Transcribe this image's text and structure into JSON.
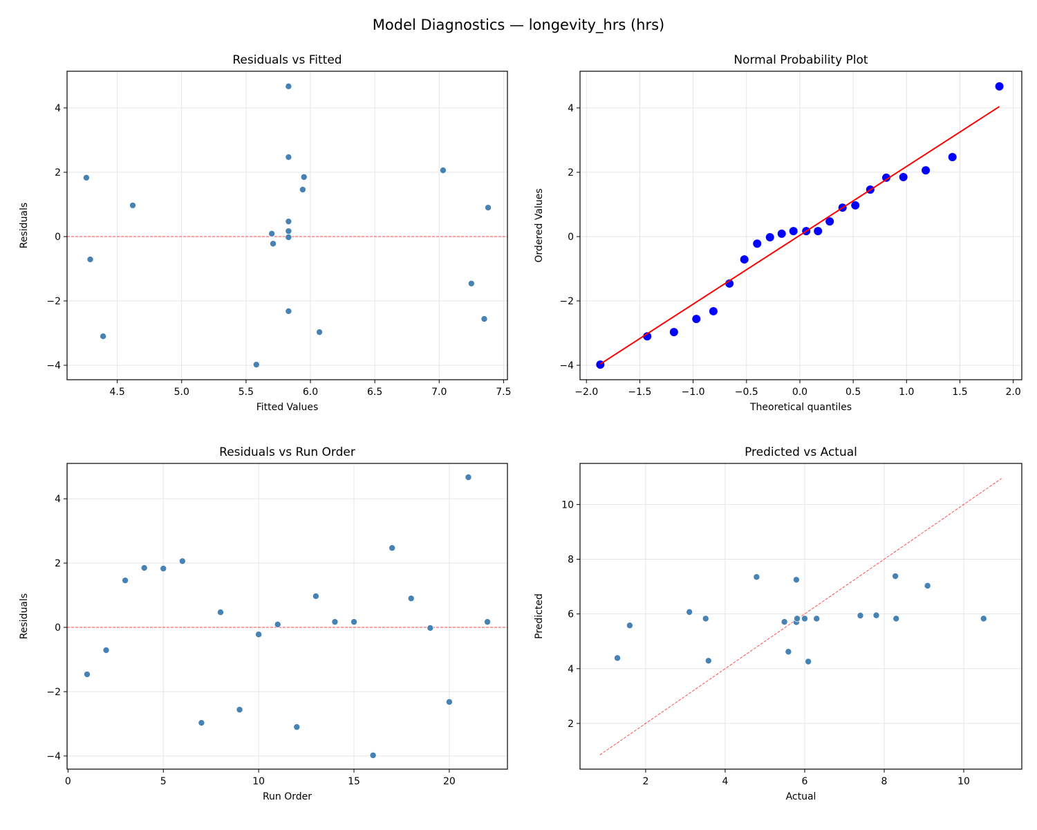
{
  "title": "Model Diagnostics — longevity_hrs (hrs)",
  "chart_data": [
    {
      "id": "resid_fitted",
      "type": "scatter",
      "title": "Residuals vs Fitted",
      "xlabel": "Fitted Values",
      "ylabel": "Residuals",
      "xlim": [
        4.11,
        7.53
      ],
      "ylim": [
        -4.45,
        5.14
      ],
      "xticks": [
        4.5,
        5.0,
        5.5,
        6.0,
        6.5,
        7.0,
        7.5
      ],
      "xtick_labels": [
        "4.5",
        "5.0",
        "5.5",
        "6.0",
        "6.5",
        "7.0",
        "7.5"
      ],
      "yticks": [
        -4,
        -2,
        0,
        2,
        4
      ],
      "ytick_labels": [
        "−4",
        "−2",
        "0",
        "2",
        "4"
      ],
      "grid": true,
      "reference_line": {
        "type": "horizontal",
        "y": 0,
        "color": "#ff0000",
        "style": "dashed"
      },
      "marker_color": "#4682b4",
      "x": [
        7.25,
        4.29,
        5.94,
        5.95,
        4.26,
        7.03,
        6.07,
        5.83,
        7.35,
        5.71,
        5.7,
        4.39,
        4.62,
        5.83,
        5.83,
        5.58,
        5.83,
        7.38,
        5.83,
        5.83,
        5.83,
        5.83
      ],
      "y": [
        -1.46,
        -0.71,
        1.46,
        1.85,
        1.83,
        2.06,
        -2.97,
        0.47,
        -2.56,
        -0.22,
        0.09,
        -3.1,
        0.97,
        0.17,
        0.17,
        -3.98,
        2.47,
        0.9,
        -0.02,
        -2.32,
        4.67,
        0.17
      ]
    },
    {
      "id": "normal_prob",
      "type": "scatter",
      "title": "Normal Probability Plot",
      "xlabel": "Theoretical quantiles",
      "ylabel": "Ordered Values",
      "xlim": [
        -2.06,
        2.08
      ],
      "ylim": [
        -4.45,
        5.14
      ],
      "xticks": [
        -2.0,
        -1.5,
        -1.0,
        -0.5,
        0.0,
        0.5,
        1.0,
        1.5,
        2.0
      ],
      "xtick_labels": [
        "−2.0",
        "−1.5",
        "−1.0",
        "−0.5",
        "0.0",
        "0.5",
        "1.0",
        "1.5",
        "2.0"
      ],
      "yticks": [
        -4,
        -2,
        0,
        2,
        4
      ],
      "ytick_labels": [
        "−4",
        "−2",
        "0",
        "2",
        "4"
      ],
      "grid": true,
      "fit_line": {
        "slope": 2.14,
        "intercept": 0.04,
        "color": "#ff0000",
        "style": "solid"
      },
      "marker_color": "#0000ff",
      "x": [
        -1.87,
        -1.43,
        -1.18,
        -0.97,
        -0.81,
        -0.66,
        -0.52,
        -0.4,
        -0.28,
        -0.17,
        -0.06,
        0.06,
        0.17,
        0.28,
        0.4,
        0.52,
        0.66,
        0.81,
        0.97,
        1.18,
        1.43,
        1.87
      ],
      "y": [
        -3.98,
        -3.1,
        -2.97,
        -2.56,
        -2.32,
        -1.46,
        -0.71,
        -0.22,
        -0.02,
        0.09,
        0.17,
        0.17,
        0.17,
        0.47,
        0.9,
        0.97,
        1.46,
        1.83,
        1.85,
        2.06,
        2.47,
        4.67
      ]
    },
    {
      "id": "resid_order",
      "type": "scatter",
      "title": "Residuals vs Run Order",
      "xlabel": "Run Order",
      "ylabel": "Residuals",
      "xlim": [
        -0.05,
        23.05
      ],
      "ylim": [
        -4.41,
        5.1
      ],
      "xticks": [
        0,
        5,
        10,
        15,
        20
      ],
      "xtick_labels": [
        "0",
        "5",
        "10",
        "15",
        "20"
      ],
      "yticks": [
        -4,
        -2,
        0,
        2,
        4
      ],
      "ytick_labels": [
        "−4",
        "−2",
        "0",
        "2",
        "4"
      ],
      "grid": true,
      "reference_line": {
        "type": "horizontal",
        "y": 0,
        "color": "#ff0000",
        "style": "dashed"
      },
      "marker_color": "#4682b4",
      "x": [
        1,
        2,
        3,
        4,
        5,
        6,
        7,
        8,
        9,
        10,
        11,
        12,
        13,
        14,
        15,
        16,
        17,
        18,
        19,
        20,
        21,
        22
      ],
      "y": [
        -1.46,
        -0.71,
        1.46,
        1.85,
        1.83,
        2.06,
        -2.97,
        0.47,
        -2.56,
        -0.22,
        0.09,
        -3.1,
        0.97,
        0.17,
        0.17,
        -3.98,
        2.47,
        0.9,
        -0.02,
        -2.32,
        4.67,
        0.17
      ]
    },
    {
      "id": "pred_actual",
      "type": "scatter",
      "title": "Predicted vs Actual",
      "xlabel": "Actual",
      "ylabel": "Predicted",
      "xlim": [
        0.35,
        11.46
      ],
      "ylim": [
        0.33,
        11.5
      ],
      "xticks": [
        2,
        4,
        6,
        8,
        10
      ],
      "xtick_labels": [
        "2",
        "4",
        "6",
        "8",
        "10"
      ],
      "yticks": [
        2,
        4,
        6,
        8,
        10
      ],
      "ytick_labels": [
        "2",
        "4",
        "6",
        "8",
        "10"
      ],
      "grid": true,
      "reference_line": {
        "type": "identity",
        "from": 0.85,
        "to": 10.95,
        "color": "#ff0000",
        "style": "dashed"
      },
      "marker_color": "#4682b4",
      "x": [
        5.79,
        3.58,
        7.4,
        7.8,
        6.09,
        9.09,
        3.1,
        6.3,
        4.79,
        5.49,
        5.79,
        1.29,
        5.59,
        6.0,
        6.0,
        1.6,
        8.3,
        8.28,
        5.81,
        3.51,
        10.5,
        6.0
      ],
      "y": [
        7.25,
        4.29,
        5.94,
        5.95,
        4.26,
        7.03,
        6.07,
        5.83,
        7.35,
        5.71,
        5.7,
        4.39,
        4.62,
        5.83,
        5.83,
        5.58,
        5.83,
        7.38,
        5.83,
        5.83,
        5.83,
        5.83
      ]
    }
  ]
}
